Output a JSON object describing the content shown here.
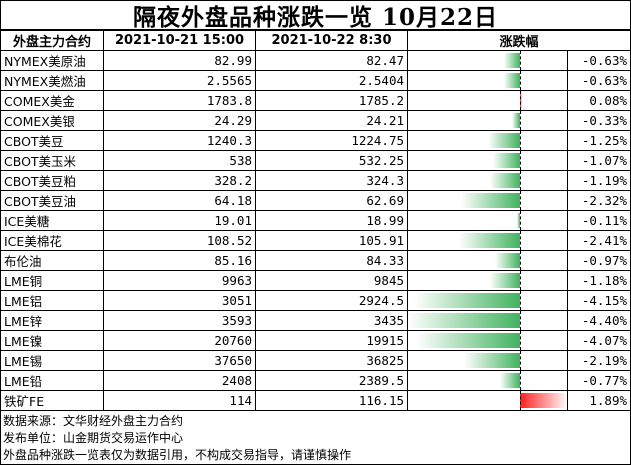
{
  "title": "隔夜外盘品种涨跌一览 10月22日",
  "headers": {
    "name": "外盘主力合约",
    "prev": "2021-10-21 15:00",
    "curr": "2021-10-22  8:30",
    "change": "涨跌幅"
  },
  "colors": {
    "down": "#41b35f",
    "up": "#ff2020"
  },
  "chart_data": {
    "type": "table",
    "title": "隔夜外盘品种涨跌一览 10月22日",
    "columns": [
      "外盘主力合约",
      "2021-10-21 15:00",
      "2021-10-22  8:30",
      "涨跌幅"
    ],
    "bar_range": [
      -4.4,
      1.89
    ],
    "rows": [
      {
        "name": "NYMEX美原油",
        "prev": "82.99",
        "curr": "82.47",
        "change": -0.63,
        "change_label": "-0.63%"
      },
      {
        "name": "NYMEX美燃油",
        "prev": "2.5565",
        "curr": "2.5404",
        "change": -0.63,
        "change_label": "-0.63%"
      },
      {
        "name": "COMEX美金",
        "prev": "1783.8",
        "curr": "1785.2",
        "change": 0.08,
        "change_label": "0.08%"
      },
      {
        "name": "COMEX美银",
        "prev": "24.29",
        "curr": "24.21",
        "change": -0.33,
        "change_label": "-0.33%"
      },
      {
        "name": "CBOT美豆",
        "prev": "1240.3",
        "curr": "1224.75",
        "change": -1.25,
        "change_label": "-1.25%"
      },
      {
        "name": "CBOT美玉米",
        "prev": "538",
        "curr": "532.25",
        "change": -1.07,
        "change_label": "-1.07%"
      },
      {
        "name": "CBOT美豆粕",
        "prev": "328.2",
        "curr": "324.3",
        "change": -1.19,
        "change_label": "-1.19%"
      },
      {
        "name": "CBOT美豆油",
        "prev": "64.18",
        "curr": "62.69",
        "change": -2.32,
        "change_label": "-2.32%"
      },
      {
        "name": "ICE美糖",
        "prev": "19.01",
        "curr": "18.99",
        "change": -0.11,
        "change_label": "-0.11%"
      },
      {
        "name": "ICE美棉花",
        "prev": "108.52",
        "curr": "105.91",
        "change": -2.41,
        "change_label": "-2.41%"
      },
      {
        "name": "布伦油",
        "prev": "85.16",
        "curr": "84.33",
        "change": -0.97,
        "change_label": "-0.97%"
      },
      {
        "name": "LME铜",
        "prev": "9963",
        "curr": "9845",
        "change": -1.18,
        "change_label": "-1.18%"
      },
      {
        "name": "LME铝",
        "prev": "3051",
        "curr": "2924.5",
        "change": -4.15,
        "change_label": "-4.15%"
      },
      {
        "name": "LME锌",
        "prev": "3593",
        "curr": "3435",
        "change": -4.4,
        "change_label": "-4.40%"
      },
      {
        "name": "LME镍",
        "prev": "20760",
        "curr": "19915",
        "change": -4.07,
        "change_label": "-4.07%"
      },
      {
        "name": "LME锡",
        "prev": "37650",
        "curr": "36825",
        "change": -2.19,
        "change_label": "-2.19%"
      },
      {
        "name": "LME铅",
        "prev": "2408",
        "curr": "2389.5",
        "change": -0.77,
        "change_label": "-0.77%"
      },
      {
        "name": "铁矿FE",
        "prev": "114",
        "curr": "116.15",
        "change": 1.89,
        "change_label": "1.89%"
      }
    ]
  },
  "notes": [
    "数据来源：文华财经外盘主力合约",
    "发布单位：山金期货交易运作中心",
    "外盘品种涨跌一览表仅为数据引用，不构成交易指导，请谨慎操作"
  ]
}
